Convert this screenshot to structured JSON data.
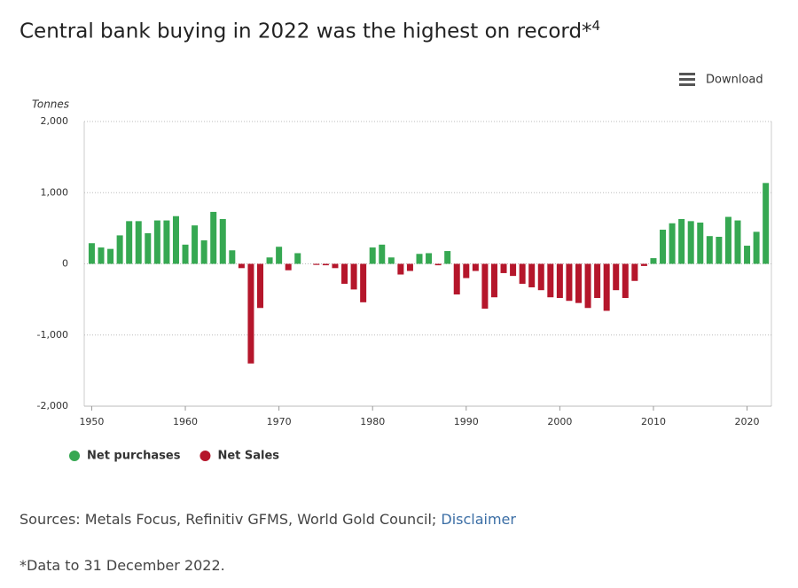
{
  "chart_data": {
    "type": "bar",
    "title": "Central bank buying in 2022 was the highest on record*",
    "title_note": "4",
    "menu_label": "Download",
    "y_label": "Tonnes",
    "x": [
      1950,
      1951,
      1952,
      1953,
      1954,
      1955,
      1956,
      1957,
      1958,
      1959,
      1960,
      1961,
      1962,
      1963,
      1964,
      1965,
      1966,
      1967,
      1968,
      1969,
      1970,
      1971,
      1972,
      1973,
      1974,
      1975,
      1976,
      1977,
      1978,
      1979,
      1980,
      1981,
      1982,
      1983,
      1984,
      1985,
      1986,
      1987,
      1988,
      1989,
      1990,
      1991,
      1992,
      1993,
      1994,
      1995,
      1996,
      1997,
      1998,
      1999,
      2000,
      2001,
      2002,
      2003,
      2004,
      2005,
      2006,
      2007,
      2008,
      2009,
      2010,
      2011,
      2012,
      2013,
      2014,
      2015,
      2016,
      2017,
      2018,
      2019,
      2020,
      2021,
      2022
    ],
    "series": [
      {
        "name": "Net purchases",
        "color": "#36a852",
        "values": [
          290,
          230,
          210,
          400,
          600,
          600,
          430,
          610,
          610,
          670,
          270,
          540,
          330,
          730,
          630,
          190,
          null,
          null,
          null,
          90,
          240,
          null,
          150,
          0,
          null,
          null,
          null,
          null,
          null,
          null,
          230,
          270,
          90,
          null,
          null,
          140,
          150,
          null,
          180,
          null,
          null,
          null,
          null,
          null,
          null,
          null,
          null,
          null,
          null,
          null,
          null,
          null,
          null,
          null,
          null,
          null,
          null,
          null,
          null,
          null,
          80,
          480,
          570,
          630,
          600,
          580,
          390,
          380,
          660,
          610,
          255,
          450,
          1136
        ]
      },
      {
        "name": "Net Sales",
        "color": "#b5162b",
        "values": [
          null,
          null,
          null,
          null,
          null,
          null,
          null,
          null,
          null,
          null,
          null,
          null,
          null,
          null,
          null,
          null,
          -60,
          -1400,
          -620,
          null,
          null,
          -90,
          null,
          null,
          -15,
          -20,
          -60,
          -280,
          -360,
          -540,
          null,
          null,
          null,
          -150,
          -100,
          null,
          null,
          -20,
          null,
          -430,
          -200,
          -100,
          -630,
          -470,
          -130,
          -170,
          -280,
          -330,
          -370,
          -470,
          -480,
          -520,
          -550,
          -620,
          -480,
          -660,
          -370,
          -480,
          -240,
          -30,
          null,
          null,
          null,
          null,
          null,
          null,
          null,
          null,
          null,
          null,
          null,
          null,
          null
        ]
      }
    ],
    "xlim": [
      1949.2,
      2022.6
    ],
    "xticks": [
      1950,
      1960,
      1970,
      1980,
      1990,
      2000,
      2010,
      2020
    ],
    "ylim": [
      -2000,
      2000
    ],
    "yticks": [
      {
        "value": -2000,
        "label": "-2,000"
      },
      {
        "value": -1000,
        "label": "-1,000"
      },
      0,
      {
        "value": 1000,
        "label": "1,000"
      },
      {
        "value": 2000,
        "label": "2,000"
      }
    ],
    "grid": true,
    "legend": "bottom-left",
    "sources": "Sources: Metals Focus, Refinitiv GFMS, World Gold Council;",
    "sources_link": "Disclaimer",
    "footnote": "*Data to 31 December 2022."
  }
}
